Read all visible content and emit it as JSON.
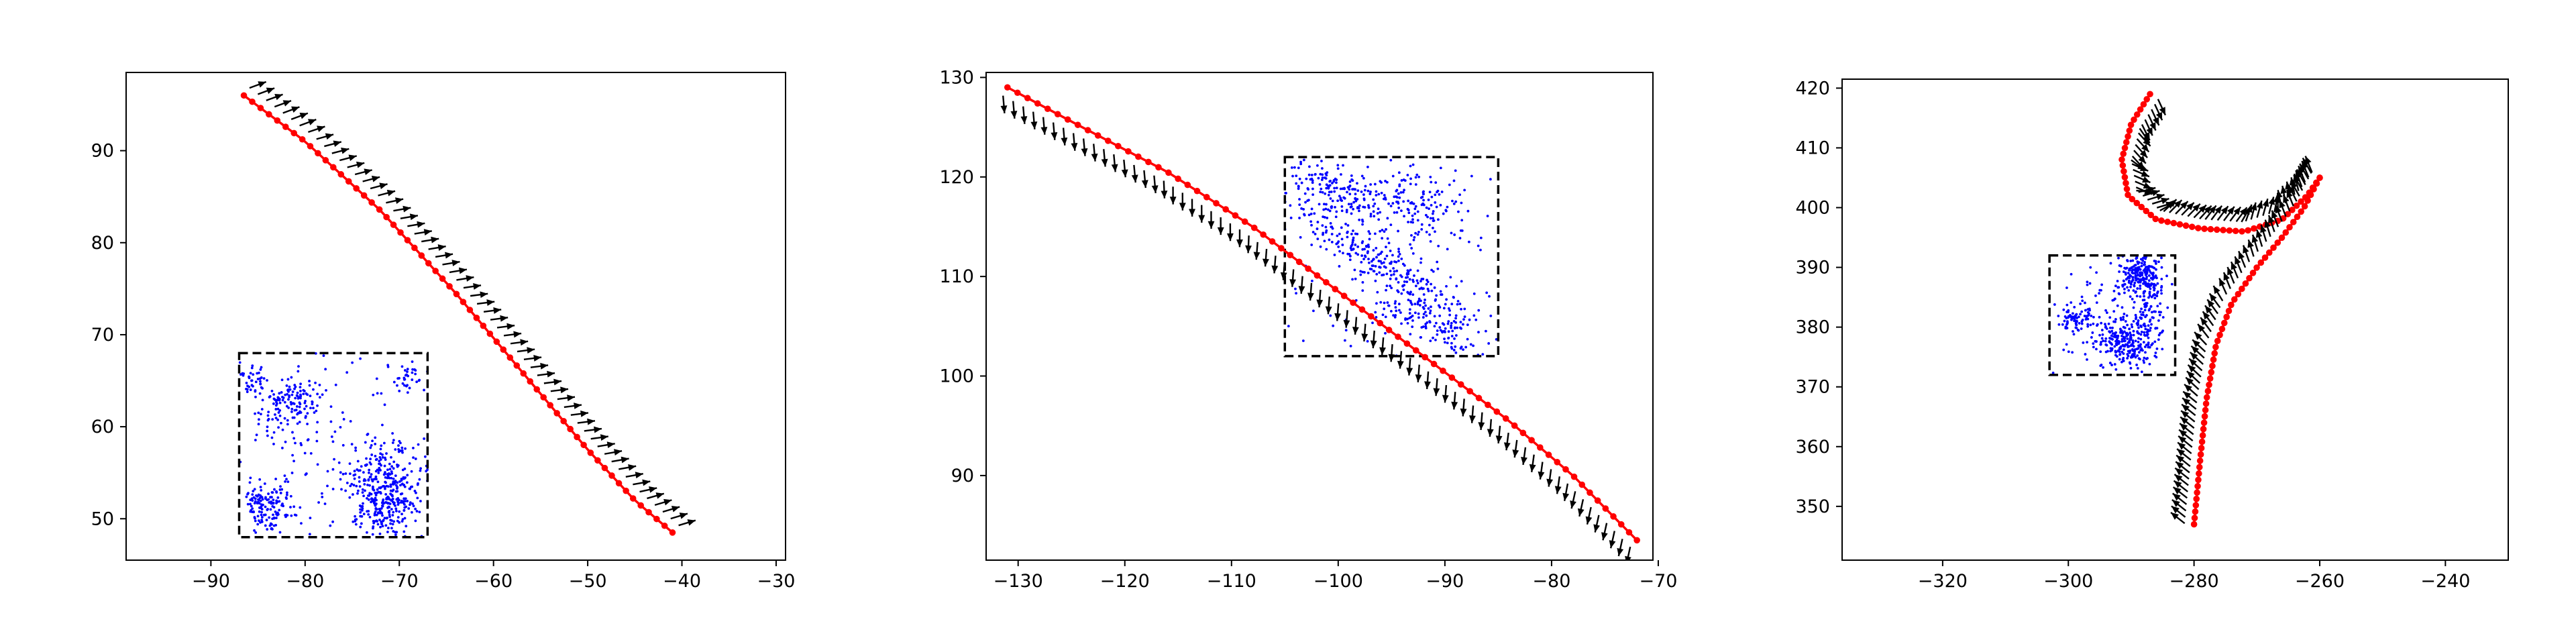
{
  "figure": {
    "background": "#ffffff",
    "colors": {
      "trajectory": "#ff0000",
      "arrows": "#000000",
      "points": "#0000ff",
      "box": "#000000",
      "axes": "#000000"
    }
  },
  "chart_data": [
    {
      "type": "scatter",
      "title": "",
      "xlabel": "",
      "ylabel": "",
      "grid": false,
      "legend": "none",
      "xlim": [
        -99,
        -29
      ],
      "ylim": [
        45.5,
        98.5
      ],
      "xticks": [
        -90,
        -80,
        -70,
        -60,
        -50,
        -40,
        -30
      ],
      "yticks": [
        50,
        60,
        70,
        80,
        90
      ],
      "xtick_labels": [
        "−90",
        "−80",
        "−70",
        "−60",
        "−50",
        "−40",
        "−30"
      ],
      "ytick_labels": [
        "50",
        "60",
        "70",
        "80",
        "90"
      ],
      "trajectory": {
        "x": [
          -86.5,
          -80,
          -72,
          -64,
          -57,
          -50,
          -45,
          -41
        ],
        "y": [
          96,
          91,
          83.5,
          74.5,
          66,
          57.5,
          52,
          48.5
        ],
        "points": 60
      },
      "arrows": {
        "dx": -0.8,
        "dy": -1.6,
        "side": -1,
        "spacing": 3
      },
      "box": {
        "x": [
          -87,
          -67
        ],
        "y": [
          48,
          68
        ]
      },
      "clusters": [
        {
          "cx": -81.5,
          "cy": 62.5,
          "rx": 2.5,
          "ry": 3.5,
          "n": 140,
          "angle": -55
        },
        {
          "cx": -71.5,
          "cy": 53,
          "rx": 3.5,
          "ry": 4.5,
          "n": 380,
          "angle": 0
        },
        {
          "cx": -84,
          "cy": 51.5,
          "rx": 2.5,
          "ry": 2.5,
          "n": 140,
          "angle": 0
        },
        {
          "cx": -85.5,
          "cy": 65,
          "rx": 1.2,
          "ry": 1.5,
          "n": 40,
          "angle": 0
        },
        {
          "cx": -69,
          "cy": 65.5,
          "rx": 1.5,
          "ry": 1.5,
          "n": 30,
          "angle": 0
        },
        {
          "cx": -77,
          "cy": 58,
          "rx": 9,
          "ry": 9,
          "n": 130,
          "angle": 0
        }
      ]
    },
    {
      "type": "scatter",
      "title": "",
      "xlabel": "",
      "ylabel": "",
      "grid": false,
      "legend": "none",
      "xlim": [
        -133,
        -70.5
      ],
      "ylim": [
        81.5,
        130.5
      ],
      "xticks": [
        -130,
        -120,
        -110,
        -100,
        -90,
        -80,
        -70
      ],
      "yticks": [
        90,
        100,
        110,
        120,
        130
      ],
      "xtick_labels": [
        "−130",
        "−120",
        "−110",
        "−100",
        "−90",
        "−80",
        "−70"
      ],
      "ytick_labels": [
        "90",
        "100",
        "110",
        "120",
        "130"
      ],
      "trajectory": {
        "x": [
          -131,
          -124,
          -116,
          -108,
          -100,
          -92,
          -84,
          -78,
          -72
        ],
        "y": [
          129,
          125,
          120.5,
          115,
          108.5,
          102,
          95.5,
          90,
          83.5
        ],
        "points": 70
      },
      "arrows": {
        "dx": 0.45,
        "dy": -2.8,
        "side": 1,
        "spacing": 3
      },
      "box": {
        "x": [
          -105,
          -85
        ],
        "y": [
          102,
          122
        ]
      },
      "clusters": [
        {
          "cx": -100,
          "cy": 118.5,
          "rx": 6,
          "ry": 2,
          "n": 160,
          "angle": -28
        },
        {
          "cx": -96,
          "cy": 111.5,
          "rx": 10,
          "ry": 1.8,
          "n": 260,
          "angle": -35
        },
        {
          "cx": -91,
          "cy": 105,
          "rx": 5.5,
          "ry": 1.5,
          "n": 120,
          "angle": -30
        },
        {
          "cx": -93,
          "cy": 118,
          "rx": 5,
          "ry": 2.5,
          "n": 110,
          "angle": -30
        },
        {
          "cx": -95,
          "cy": 112,
          "rx": 10,
          "ry": 10,
          "n": 160,
          "angle": 0
        }
      ]
    },
    {
      "type": "scatter",
      "title": "",
      "xlabel": "",
      "ylabel": "",
      "grid": false,
      "legend": "none",
      "xlim": [
        -336,
        -230
      ],
      "ylim": [
        341,
        421.5
      ],
      "xticks": [
        -320,
        -300,
        -280,
        -260,
        -240
      ],
      "yticks": [
        350,
        360,
        370,
        380,
        390,
        400,
        410,
        420
      ],
      "xtick_labels": [
        "−320",
        "−300",
        "−280",
        "−260",
        "−240"
      ],
      "ytick_labels": [
        "350",
        "360",
        "370",
        "380",
        "390",
        "400",
        "410",
        "420"
      ],
      "trajectories": [
        {
          "x": [
            -287,
            -290,
            -291.5,
            -290.5,
            -286,
            -279,
            -272,
            -266,
            -262,
            -260
          ],
          "y": [
            419,
            414,
            408,
            402,
            398,
            396.5,
            396,
            398,
            402,
            405
          ],
          "points": 55,
          "side": -1
        },
        {
          "x": [
            -280,
            -279,
            -278,
            -276.5,
            -274,
            -270,
            -266,
            -262.5,
            -260
          ],
          "y": [
            347,
            358,
            368,
            377,
            384,
            390,
            395,
            400,
            405
          ],
          "points": 60,
          "side": -1
        }
      ],
      "arrows": {
        "dx": -1.6,
        "dy": 0,
        "side": -1,
        "spacing": 3
      },
      "box": {
        "x": [
          -303,
          -283
        ],
        "y": [
          372,
          392
        ]
      },
      "clusters": [
        {
          "cx": -291,
          "cy": 377.5,
          "rx": 4,
          "ry": 3.5,
          "n": 230,
          "angle": 0
        },
        {
          "cx": -288.5,
          "cy": 388.5,
          "rx": 3,
          "ry": 3,
          "n": 200,
          "angle": 0
        },
        {
          "cx": -298.5,
          "cy": 381,
          "rx": 2.5,
          "ry": 2,
          "n": 80,
          "angle": 0
        },
        {
          "cx": -287,
          "cy": 382,
          "rx": 2,
          "ry": 6,
          "n": 90,
          "angle": 0
        },
        {
          "cx": -293,
          "cy": 382,
          "rx": 9,
          "ry": 9,
          "n": 90,
          "angle": 0
        }
      ]
    }
  ]
}
